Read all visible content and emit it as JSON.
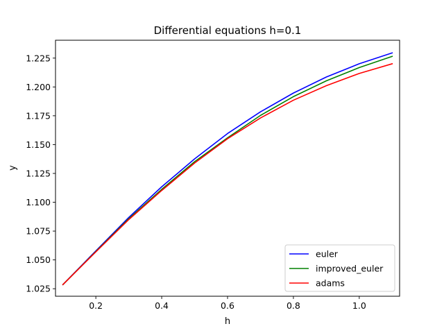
{
  "chart_data": {
    "type": "line",
    "title": "Differential equations h=0.1",
    "xlabel": "h",
    "ylabel": "y",
    "xlim": [
      0.0775,
      1.1225
    ],
    "ylim": [
      1.0185,
      1.2405
    ],
    "xticks": [
      0.2,
      0.4,
      0.6,
      0.8,
      1.0
    ],
    "xtick_labels": [
      "0.2",
      "0.4",
      "0.6",
      "0.8",
      "1.0"
    ],
    "yticks": [
      1.025,
      1.05,
      1.075,
      1.1,
      1.125,
      1.15,
      1.175,
      1.2,
      1.225
    ],
    "ytick_labels": [
      "1.025",
      "1.050",
      "1.075",
      "1.100",
      "1.125",
      "1.150",
      "1.175",
      "1.200",
      "1.225"
    ],
    "grid": false,
    "legend_position": "lower-right",
    "x": [
      0.1,
      0.2,
      0.3,
      0.4,
      0.5,
      0.6,
      0.7,
      0.8,
      0.9,
      1.0,
      1.1
    ],
    "series": [
      {
        "name": "euler",
        "color": "#0000ff",
        "values": [
          1.0286,
          1.0578,
          1.0868,
          1.1134,
          1.1376,
          1.1596,
          1.1784,
          1.1947,
          1.2086,
          1.2201,
          1.2295
        ]
      },
      {
        "name": "improved_euler",
        "color": "#008000",
        "values": [
          1.0286,
          1.0573,
          1.0857,
          1.1112,
          1.1352,
          1.1559,
          1.1753,
          1.1916,
          1.2053,
          1.2168,
          1.2265
        ]
      },
      {
        "name": "adams",
        "color": "#ff0000",
        "values": [
          1.0286,
          1.057,
          1.085,
          1.1102,
          1.134,
          1.1551,
          1.1731,
          1.1885,
          1.2011,
          1.2117,
          1.2201
        ]
      }
    ]
  }
}
